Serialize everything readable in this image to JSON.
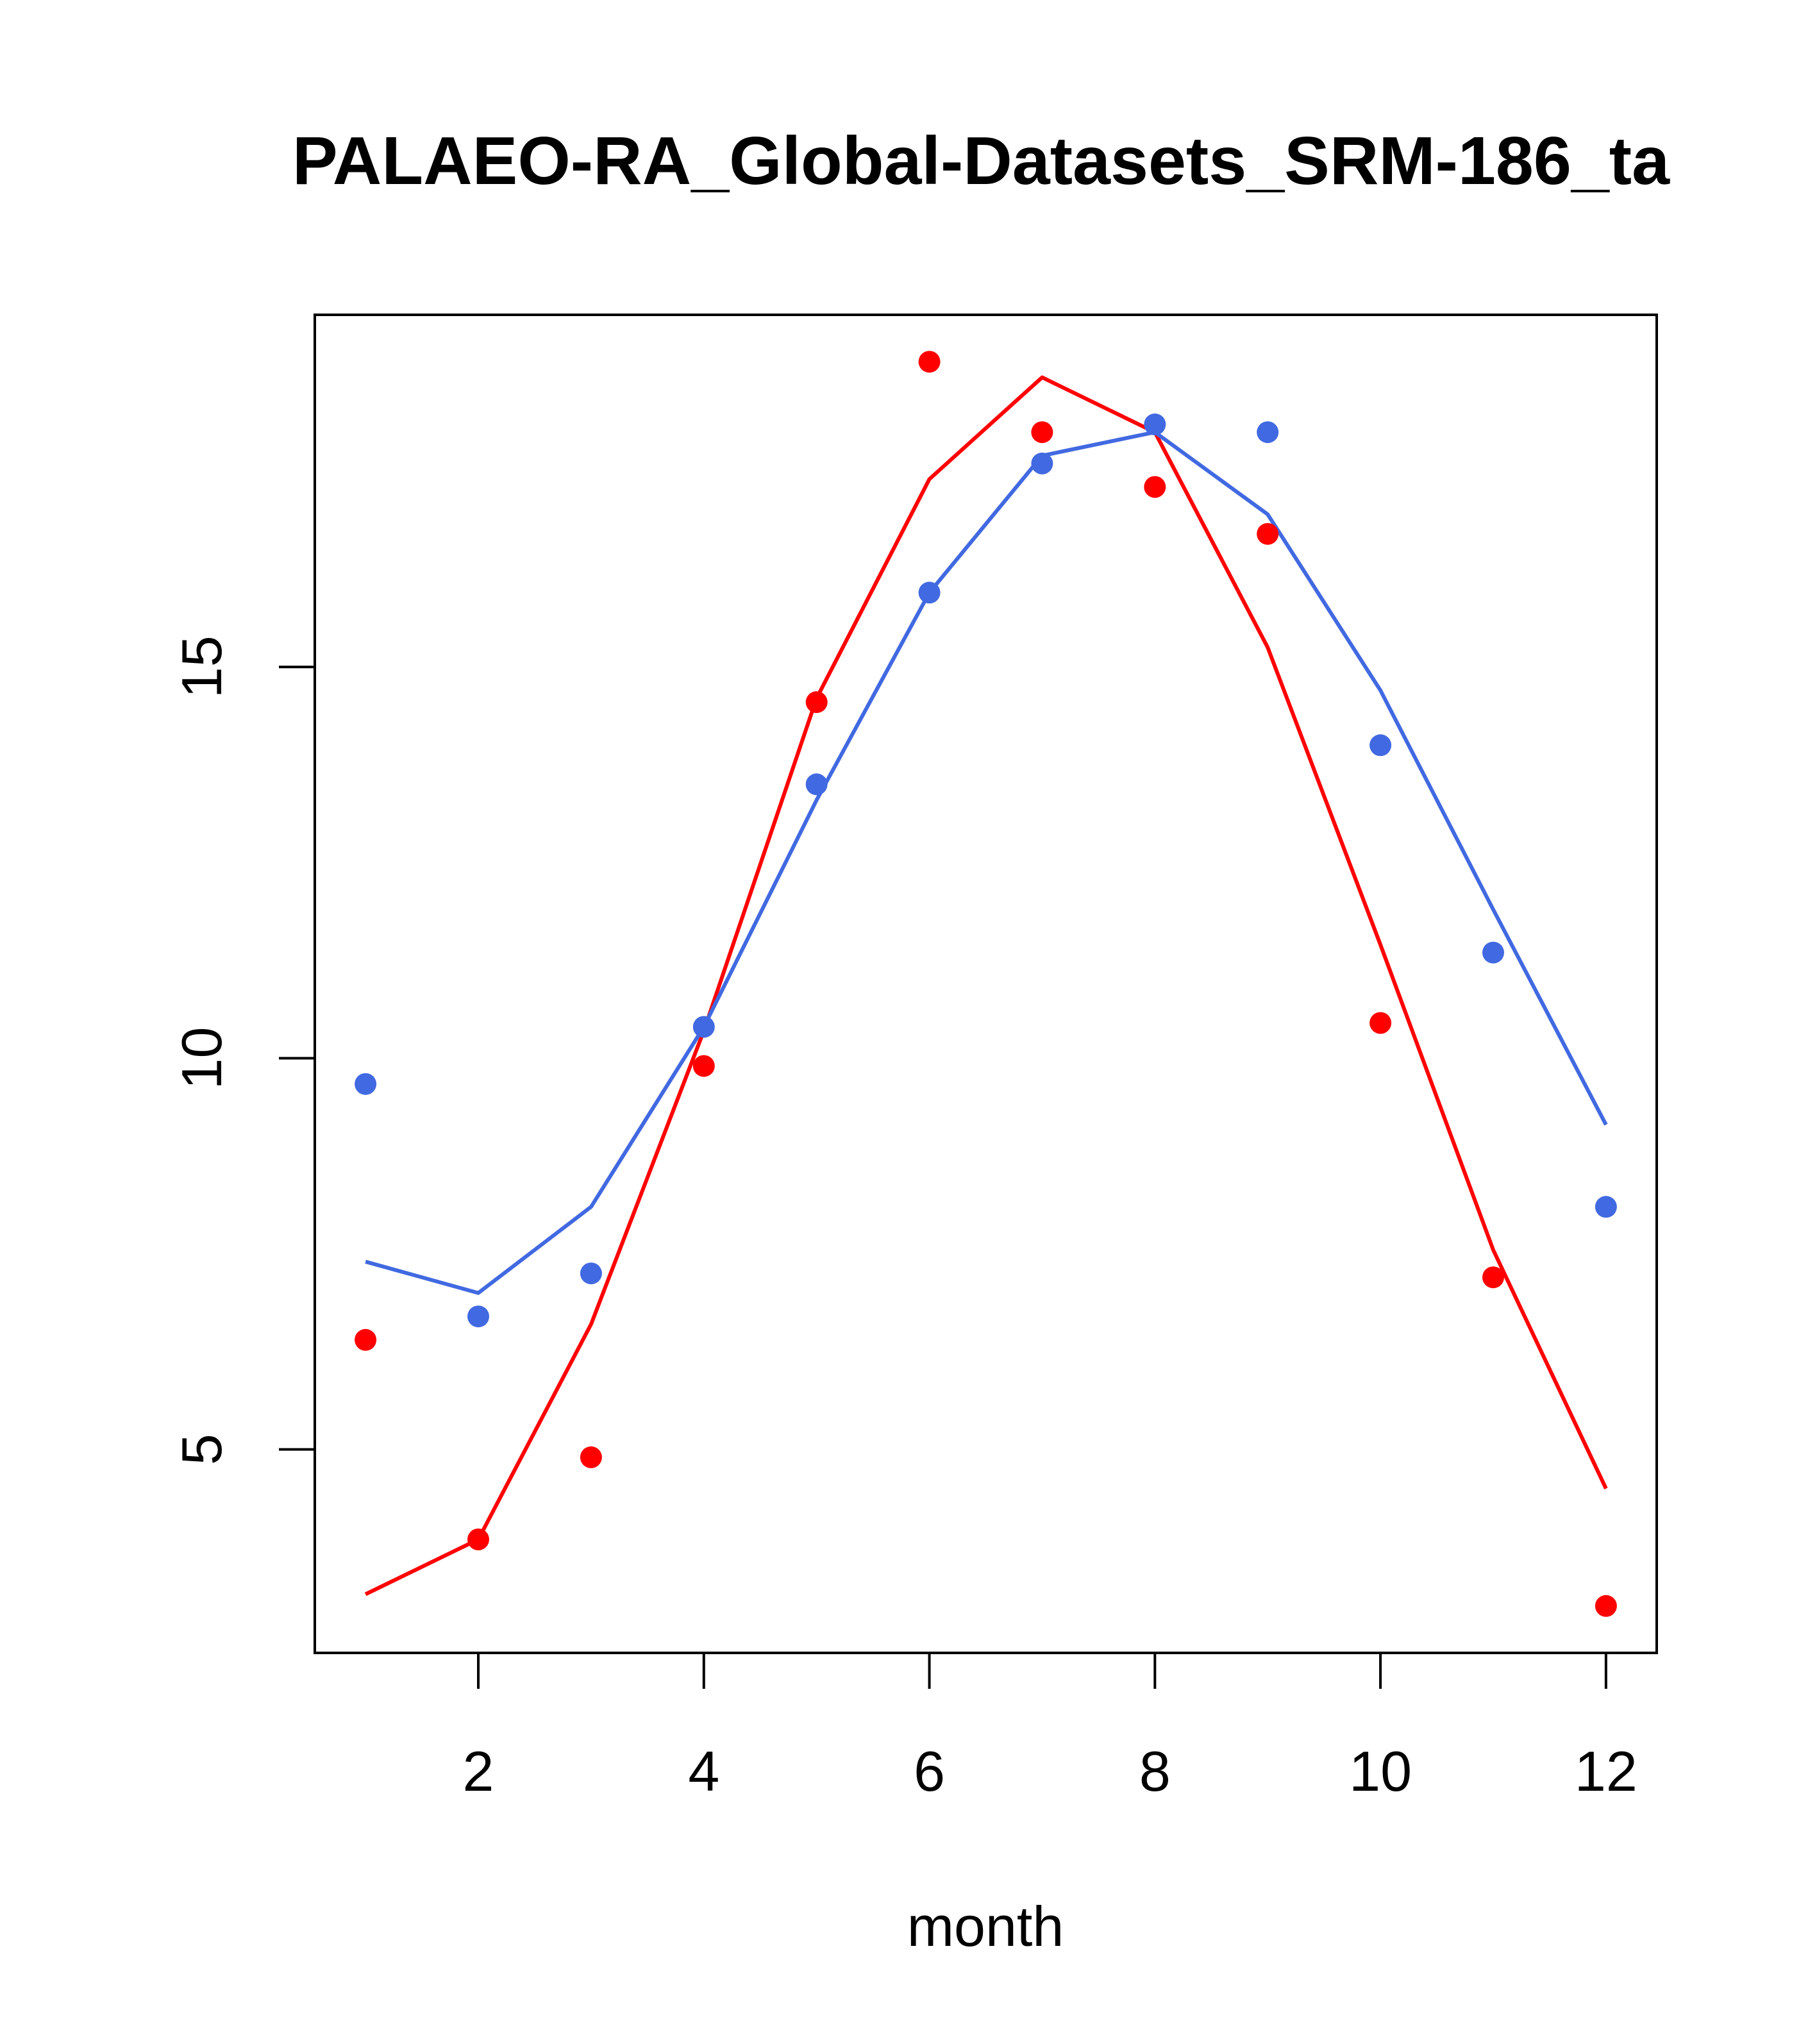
{
  "chart_data": {
    "type": "line",
    "title": "PALAEO-RA_Global-Datasets_SRM-186_ta",
    "xlabel": "month",
    "ylabel": "",
    "xlim": [
      0.55,
      12.45
    ],
    "ylim": [
      2.4,
      19.5
    ],
    "x_ticks": [
      2,
      4,
      6,
      8,
      10,
      12
    ],
    "y_ticks": [
      5,
      10,
      15
    ],
    "x_tick_labels": [
      "2",
      "4",
      "6",
      "8",
      "10",
      "12"
    ],
    "y_tick_labels": [
      "5",
      "10",
      "15"
    ],
    "grid": false,
    "x": [
      1,
      2,
      3,
      4,
      5,
      6,
      7,
      8,
      9,
      10,
      11,
      12
    ],
    "series": [
      {
        "name": "red-line",
        "kind": "line",
        "color": "#ff0000",
        "values": [
          3.15,
          3.85,
          6.6,
          10.35,
          14.6,
          17.4,
          18.7,
          18.0,
          15.25,
          11.45,
          7.55,
          4.5
        ]
      },
      {
        "name": "blue-line",
        "kind": "line",
        "color": "#4169e1",
        "values": [
          7.4,
          7.0,
          8.1,
          10.4,
          13.3,
          15.95,
          17.7,
          18.0,
          16.95,
          14.7,
          11.9,
          9.15
        ]
      },
      {
        "name": "red-points",
        "kind": "points",
        "color": "#ff0000",
        "values": [
          6.4,
          3.85,
          4.9,
          9.9,
          14.55,
          18.9,
          18.0,
          17.3,
          16.7,
          10.45,
          7.2,
          3.0
        ]
      },
      {
        "name": "blue-points",
        "kind": "points",
        "color": "#4169e1",
        "values": [
          9.67,
          6.7,
          7.25,
          10.4,
          13.5,
          15.95,
          17.6,
          18.1,
          18.0,
          14.0,
          11.35,
          8.1
        ]
      }
    ]
  }
}
